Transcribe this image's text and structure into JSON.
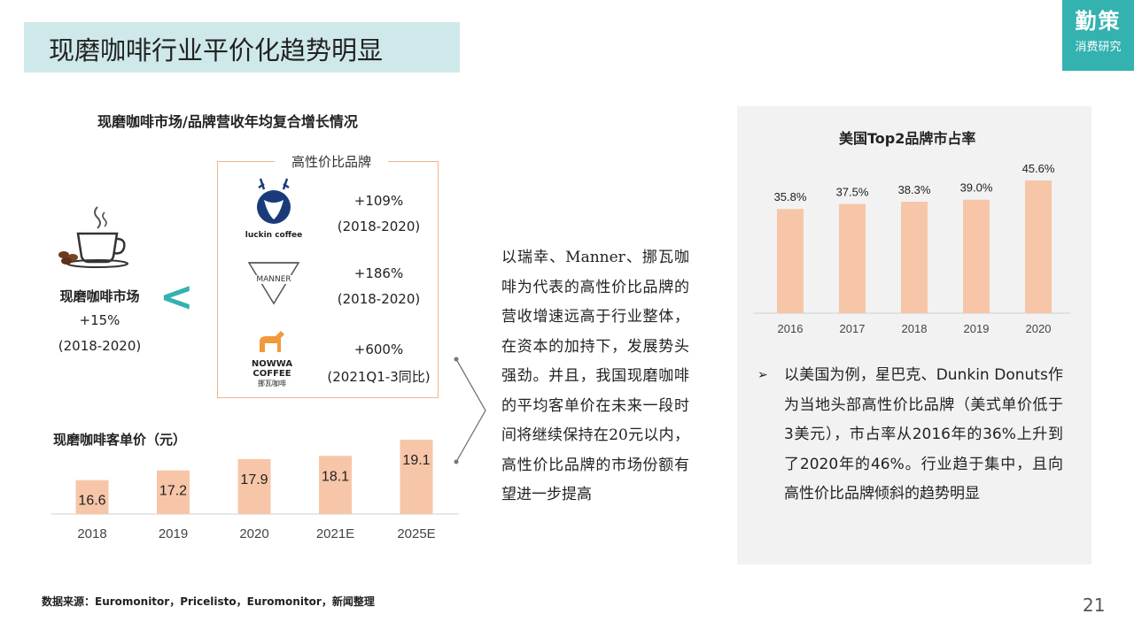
{
  "header": {
    "title": "现磨咖啡行业平价化趋势明显",
    "brand_name": "勤策",
    "brand_sub": "消费研究"
  },
  "left": {
    "section_title": "现磨咖啡市场/品牌营收年均复合增长情况",
    "market": {
      "label": "现磨咖啡市场",
      "growth": "+15%",
      "period": "(2018-2020)",
      "comparator": "<"
    },
    "brand_box": {
      "title": "高性价比品牌",
      "brands": [
        {
          "logo_text": "luckin coffee",
          "icon": "luckin-deer-logo",
          "growth": "+109%",
          "period": "(2018-2020)"
        },
        {
          "logo_text": "MANNER",
          "icon": "manner-triangle-logo",
          "growth": "+186%",
          "period": "(2018-2020)"
        },
        {
          "logo_text": "NOWWA COFFEE",
          "logo_sub": "挪瓦咖啡",
          "icon": "nowwa-horse-logo",
          "growth": "+600%",
          "period": "(2021Q1-3同比)"
        }
      ]
    }
  },
  "price_chart_title": "现磨咖啡客单价（元）",
  "paragraph": "以瑞幸、Manner、挪瓦咖啡为代表的高性价比品牌的营收增速远高于行业整体，在资本的加持下，发展势头强劲。并且，我国现磨咖啡的平均客单价在未来一段时间将继续保持在20元以内，高性价比品牌的市场份额有望进一步提高",
  "right": {
    "chart_title": "美国Top2品牌市占率",
    "bullet": "以美国为例，星巴克、Dunkin Donuts作为当地头部高性价比品牌（美式单价低于3美元），市占率从2016年的36%上升到了2020年的46%。行业趋于集中，且向高性价比品牌倾斜的趋势明显"
  },
  "source": "数据来源：Euromonitor，Pricelisto，Euromonitor，新闻整理",
  "page_number": "21",
  "colors": {
    "accent": "#33b2b0",
    "bar": "#f7c6a8",
    "title_bg": "#cfe9ea",
    "frame": "#f0b48e",
    "panel": "#f2f2f2"
  },
  "chart_data": [
    {
      "type": "bar",
      "title": "现磨咖啡客单价（元）",
      "categories": [
        "2018",
        "2019",
        "2020",
        "2021E",
        "2025E"
      ],
      "values": [
        16.6,
        17.2,
        17.9,
        18.1,
        19.1
      ],
      "labels": [
        "16.6",
        "17.2",
        "17.9",
        "18.1",
        "19.1"
      ],
      "ylim": [
        14.5,
        19.1
      ],
      "grid": false,
      "legend": "none"
    },
    {
      "type": "bar",
      "title": "美国Top2品牌市占率",
      "categories": [
        "2016",
        "2017",
        "2018",
        "2019",
        "2020"
      ],
      "values": [
        35.8,
        37.5,
        38.3,
        39.0,
        45.6
      ],
      "labels": [
        "35.8%",
        "37.5%",
        "38.3%",
        "39.0%",
        "45.6%"
      ],
      "ylim": [
        0,
        45.6
      ],
      "grid": false,
      "legend": "none"
    }
  ]
}
